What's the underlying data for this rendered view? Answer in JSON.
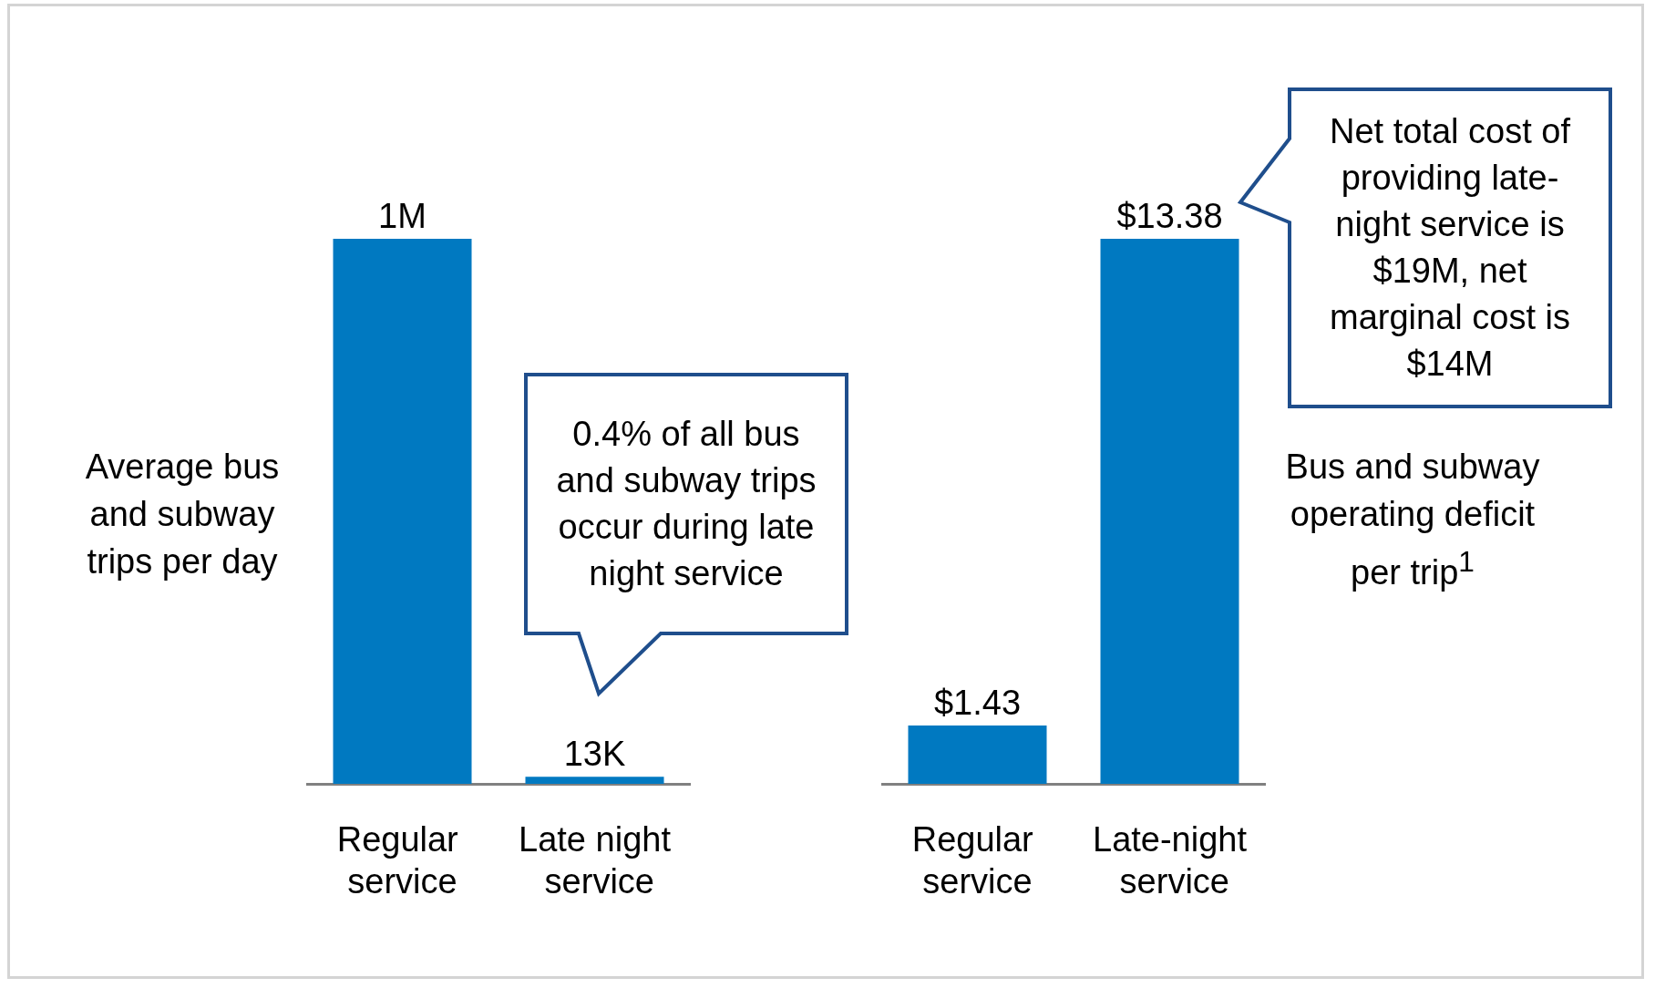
{
  "chart_data": [
    {
      "type": "bar",
      "categories": [
        "Regular service",
        "Late night service"
      ],
      "values": [
        1000000,
        13000
      ],
      "value_labels": [
        "1M",
        "13K"
      ],
      "color": "#0079c1",
      "ylabel": "Average bus and subway trips per day",
      "annotations": [
        "0.4% of all bus and subway trips occur during late night service"
      ]
    },
    {
      "type": "bar",
      "categories": [
        "Regular service",
        "Late-night service"
      ],
      "values": [
        1.43,
        13.38
      ],
      "value_labels": [
        "$1.43",
        "$13.38"
      ],
      "color": "#0079c1",
      "ylabel": "Bus and subway operating deficit per trip$^{1}$",
      "annotations": [
        "Net total cost of providing late-night service is $19M, net marginal cost is $14M"
      ]
    }
  ]
}
